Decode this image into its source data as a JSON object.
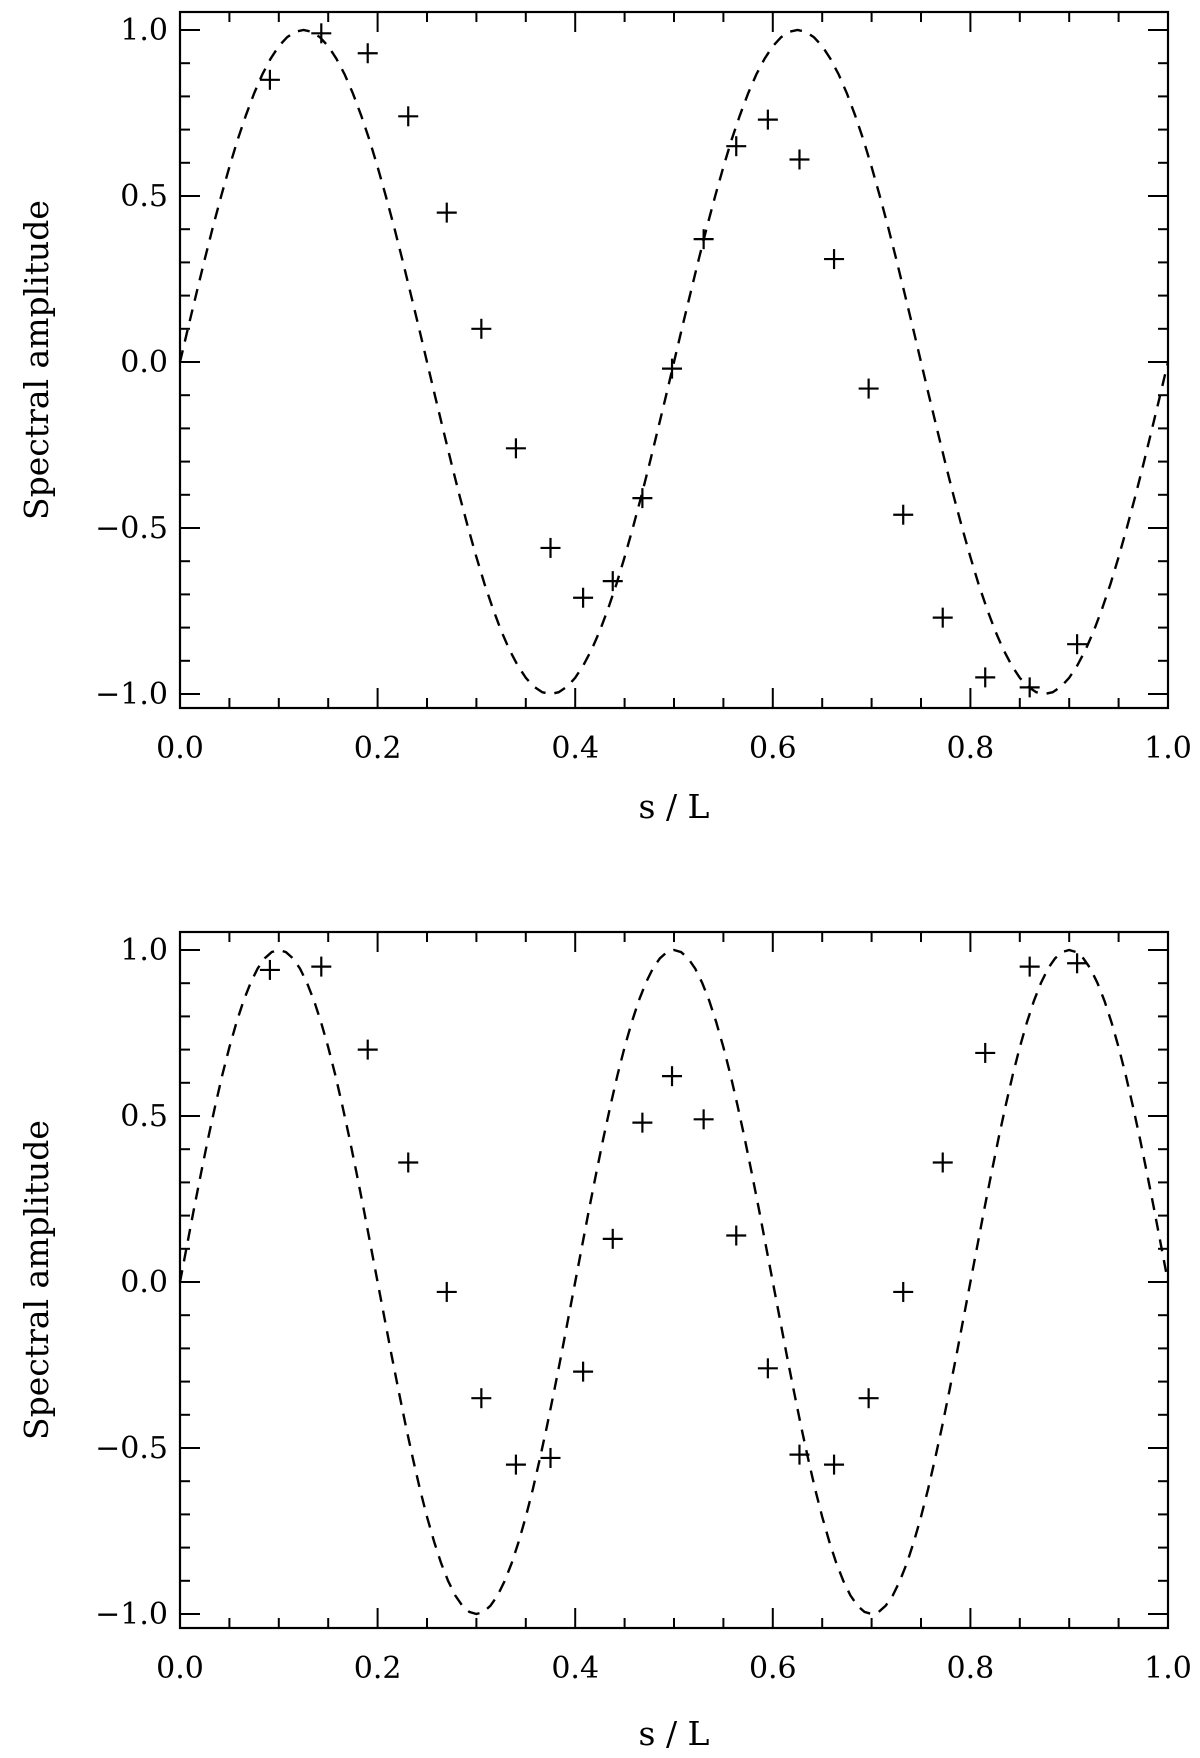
{
  "chart_data": [
    {
      "type": "scatter",
      "xlabel": "s / L",
      "ylabel": "Spectral amplitude",
      "xlim": [
        0.0,
        1.0
      ],
      "ylim": [
        -1.0,
        1.0
      ],
      "x_ticks": [
        "0.0",
        "0.2",
        "0.4",
        "0.6",
        "0.8",
        "1.0"
      ],
      "y_ticks": [
        "1.0",
        "0.5",
        "0.0",
        "−0.5",
        "−1.0"
      ],
      "grid": false,
      "model_curve": {
        "style": "dashed",
        "function": "sin",
        "cycles": 2,
        "points": 120
      },
      "series": [
        {
          "marker": "plus",
          "points": [
            [
              0.091,
              0.85
            ],
            [
              0.143,
              0.99
            ],
            [
              0.19,
              0.93
            ],
            [
              0.231,
              0.74
            ],
            [
              0.27,
              0.45
            ],
            [
              0.305,
              0.1
            ],
            [
              0.34,
              -0.26
            ],
            [
              0.375,
              -0.56
            ],
            [
              0.408,
              -0.71
            ],
            [
              0.438,
              -0.66
            ],
            [
              0.468,
              -0.41
            ],
            [
              0.498,
              -0.02
            ],
            [
              0.53,
              0.37
            ],
            [
              0.563,
              0.65
            ],
            [
              0.595,
              0.73
            ],
            [
              0.627,
              0.61
            ],
            [
              0.662,
              0.31
            ],
            [
              0.697,
              -0.08
            ],
            [
              0.732,
              -0.46
            ],
            [
              0.772,
              -0.77
            ],
            [
              0.815,
              -0.95
            ],
            [
              0.86,
              -0.98
            ],
            [
              0.908,
              -0.85
            ]
          ]
        }
      ]
    },
    {
      "type": "scatter",
      "xlabel": "s / L",
      "ylabel": "Spectral amplitude",
      "xlim": [
        0.0,
        1.0
      ],
      "ylim": [
        -1.0,
        1.0
      ],
      "x_ticks": [
        "0.0",
        "0.2",
        "0.4",
        "0.6",
        "0.8",
        "1.0"
      ],
      "y_ticks": [
        "1.0",
        "0.5",
        "0.0",
        "−0.5",
        "−1.0"
      ],
      "grid": false,
      "model_curve": {
        "style": "dashed",
        "function": "sin",
        "cycles": 2.5,
        "points": 140
      },
      "series": [
        {
          "marker": "plus",
          "points": [
            [
              0.091,
              0.94
            ],
            [
              0.143,
              0.95
            ],
            [
              0.19,
              0.7
            ],
            [
              0.231,
              0.36
            ],
            [
              0.27,
              -0.03
            ],
            [
              0.305,
              -0.35
            ],
            [
              0.34,
              -0.55
            ],
            [
              0.375,
              -0.53
            ],
            [
              0.408,
              -0.27
            ],
            [
              0.438,
              0.13
            ],
            [
              0.468,
              0.48
            ],
            [
              0.498,
              0.62
            ],
            [
              0.53,
              0.49
            ],
            [
              0.563,
              0.14
            ],
            [
              0.595,
              -0.26
            ],
            [
              0.627,
              -0.52
            ],
            [
              0.662,
              -0.55
            ],
            [
              0.697,
              -0.35
            ],
            [
              0.732,
              -0.03
            ],
            [
              0.772,
              0.36
            ],
            [
              0.815,
              0.69
            ],
            [
              0.86,
              0.95
            ],
            [
              0.908,
              0.96
            ]
          ]
        }
      ]
    }
  ]
}
